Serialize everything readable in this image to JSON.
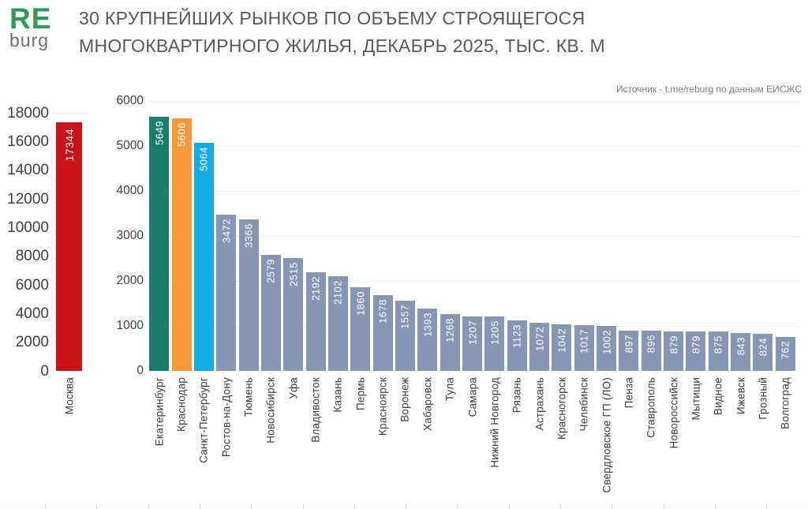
{
  "logo": {
    "top": "RE",
    "bottom": "burg"
  },
  "header": {
    "title_line1": "30 КРУПНЕЙШИХ РЫНКОВ ПО ОБЪЕМУ СТРОЯЩЕГОСЯ",
    "title_line2": "МНОГОКВАРТИРНОГО ЖИЛЬЯ, ДЕКАБРЬ 2025, ТЫС. КВ. М"
  },
  "source_note": "Источник - t.me/reburg по данным ЕИСЖС",
  "colors": {
    "moscow_red": "#C91016",
    "ekaterinburg_teal": "#1A7E6B",
    "krasnodar_orange": "#F8993B",
    "spb_blue": "#15ACE5",
    "default_slate": "#8796B2",
    "logo_green": "#2E9C54",
    "title_gray": "#58595B",
    "grid_gray": "#EEEEEE"
  },
  "chart_data": [
    {
      "name": "moscow-mini-bar-chart",
      "type": "bar",
      "title": "",
      "categories": [
        "Москва"
      ],
      "values": [
        17344
      ],
      "bar_colors": [
        "#C91016"
      ],
      "default_bar_color": "#C91016",
      "ylim": [
        0,
        18000
      ],
      "ytick_step": 2000,
      "grid": "top",
      "legend": "none",
      "value_labels": "white, vertical, inside bar top"
    },
    {
      "name": "top30-markets-bar-chart",
      "type": "bar",
      "title": "",
      "categories": [
        "Екатеринбург",
        "Краснодар",
        "Санкт-Петербург",
        "Ростов-на-Дону",
        "Тюмень",
        "Новосибирск",
        "Уфа",
        "Владивосток",
        "Казань",
        "Пермь",
        "Красноярск",
        "Воронеж",
        "Хабаровск",
        "Тула",
        "Самара",
        "Нижний Новгород",
        "Рязань",
        "Астрахань",
        "Красногорск",
        "Челябинск",
        "Свердловское ГП (ЛО)",
        "Пенза",
        "Ставрополь",
        "Новороссийск",
        "Мытищи",
        "Видное",
        "Ижевск",
        "Грозный",
        "Волгоград"
      ],
      "values": [
        5649,
        5606,
        5064,
        3472,
        3366,
        2579,
        2515,
        2192,
        2102,
        1860,
        1678,
        1557,
        1393,
        1268,
        1207,
        1205,
        1123,
        1072,
        1042,
        1017,
        1002,
        897,
        896,
        879,
        879,
        875,
        843,
        824,
        762
      ],
      "bar_colors": [
        "#1A7E6B",
        "#F8993B",
        "#15ACE5"
      ],
      "default_bar_color": "#8796B2",
      "ylim": [
        0,
        6000
      ],
      "ytick_step": 1000,
      "grid": true,
      "legend": "none",
      "value_labels": "white, vertical, inside bar top"
    }
  ]
}
